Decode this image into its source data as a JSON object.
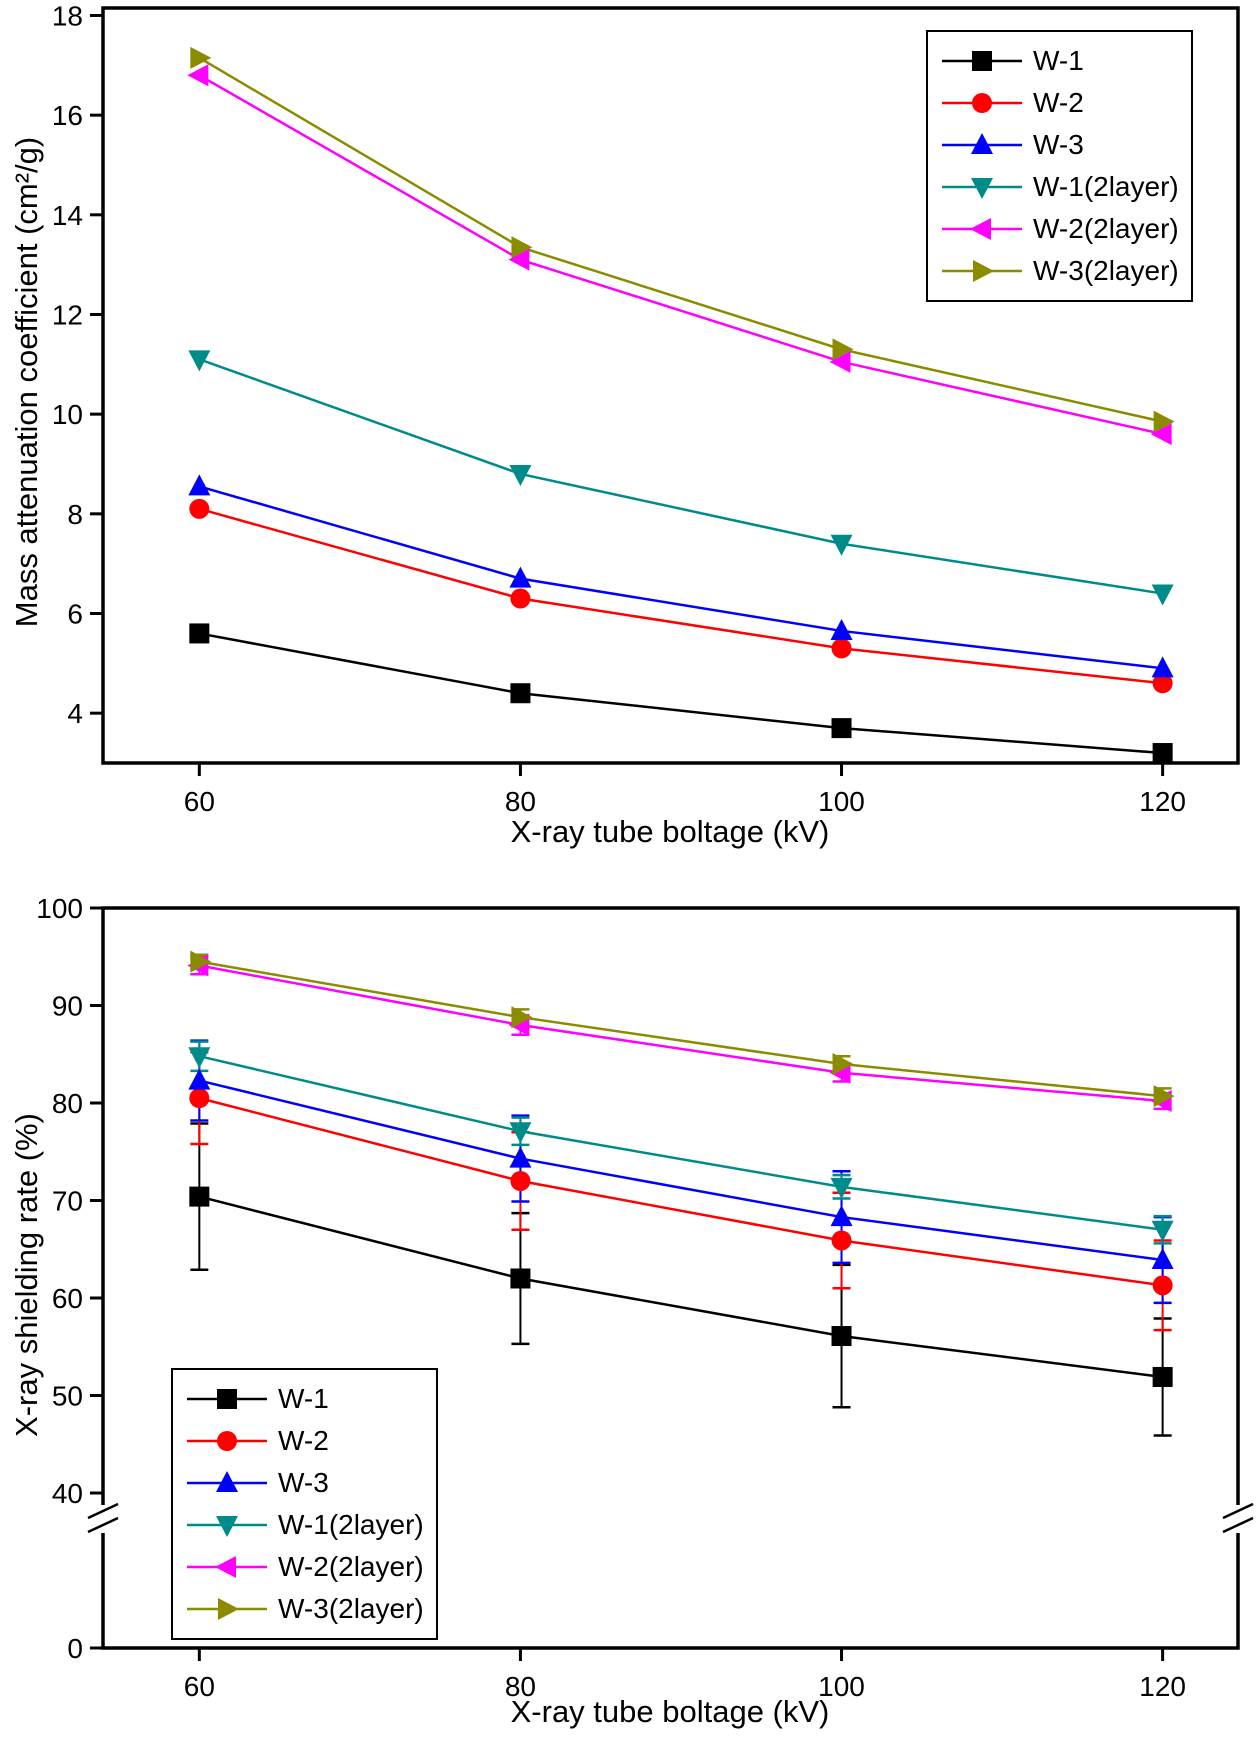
{
  "figure": {
    "background": "#ffffff",
    "x_axis_title": "X-ray tube boltage (kV)",
    "top_y_axis_title": "Mass attenuation coefficient (cm²/g)",
    "bottom_y_axis_title": "X-ray shielding rate (%)"
  },
  "chart_data": [
    {
      "name": "mass-attenuation",
      "type": "line",
      "title": "",
      "xlabel": "X-ray tube boltage (kV)",
      "ylabel": "Mass attenuation coefficient (cm²/g)",
      "x": [
        60,
        80,
        100,
        120
      ],
      "xticks": [
        60,
        80,
        100,
        120
      ],
      "yticks": [
        4,
        6,
        8,
        10,
        12,
        14,
        16,
        18
      ],
      "xlim": [
        54,
        124.7
      ],
      "ylim": [
        3.0,
        18.15
      ],
      "grid": false,
      "legend_position": "top-right",
      "series": [
        {
          "name": "W-1",
          "color": "#000000",
          "marker": "square",
          "values": [
            5.6,
            4.4,
            3.7,
            3.2
          ]
        },
        {
          "name": "W-2",
          "color": "#ff0000",
          "marker": "circle",
          "values": [
            8.1,
            6.3,
            5.3,
            4.6
          ]
        },
        {
          "name": "W-3",
          "color": "#0000ff",
          "marker": "triangle-up",
          "values": [
            8.55,
            6.7,
            5.65,
            4.9
          ]
        },
        {
          "name": "W-1(2layer)",
          "color": "#008b8b",
          "marker": "triangle-down",
          "values": [
            11.1,
            8.8,
            7.4,
            6.4
          ]
        },
        {
          "name": "W-2(2layer)",
          "color": "#ff00ff",
          "marker": "triangle-left",
          "values": [
            16.8,
            13.1,
            11.05,
            9.6
          ]
        },
        {
          "name": "W-3(2layer)",
          "color": "#8b8b00",
          "marker": "triangle-right",
          "values": [
            17.15,
            13.35,
            11.3,
            9.85
          ]
        }
      ]
    },
    {
      "name": "shielding-rate",
      "type": "line",
      "title": "",
      "xlabel": "X-ray tube boltage (kV)",
      "ylabel": "X-ray shielding rate (%)",
      "x": [
        60,
        80,
        100,
        120
      ],
      "xticks": [
        60,
        80,
        100,
        120
      ],
      "yticks": [
        40,
        50,
        60,
        70,
        80,
        90,
        100
      ],
      "ybreak": {
        "axis_break_between": [
          0,
          40
        ],
        "zero_label": "0"
      },
      "xlim": [
        54,
        124.7
      ],
      "ylim_linear": [
        40,
        100
      ],
      "grid": false,
      "legend_position": "bottom-left",
      "error_bars": true,
      "series": [
        {
          "name": "W-1",
          "color": "#000000",
          "marker": "square",
          "values": [
            70.4,
            62.0,
            56.1,
            51.9
          ],
          "error": [
            7.5,
            6.7,
            7.3,
            6.0
          ]
        },
        {
          "name": "W-2",
          "color": "#ff0000",
          "marker": "circle",
          "values": [
            80.5,
            72.0,
            65.9,
            61.3
          ],
          "error": [
            4.7,
            5.0,
            4.9,
            4.6
          ]
        },
        {
          "name": "W-3",
          "color": "#0000ff",
          "marker": "triangle-up",
          "values": [
            82.3,
            74.3,
            68.3,
            63.9
          ],
          "error": [
            4.1,
            4.4,
            4.7,
            4.4
          ]
        },
        {
          "name": "W-1(2layer)",
          "color": "#008b8b",
          "marker": "triangle-down",
          "values": [
            84.8,
            77.1,
            71.4,
            67.0
          ],
          "error": [
            1.5,
            1.4,
            1.2,
            1.4
          ]
        },
        {
          "name": "W-2(2layer)",
          "color": "#ff00ff",
          "marker": "triangle-left",
          "values": [
            94.1,
            88.0,
            83.1,
            80.2
          ],
          "error": [
            0.9,
            1.0,
            0.9,
            0.8
          ]
        },
        {
          "name": "W-3(2layer)",
          "color": "#8b8b00",
          "marker": "triangle-right",
          "values": [
            94.5,
            88.8,
            84.0,
            80.7
          ],
          "error": [
            0.7,
            0.8,
            0.8,
            0.8
          ]
        }
      ]
    }
  ]
}
